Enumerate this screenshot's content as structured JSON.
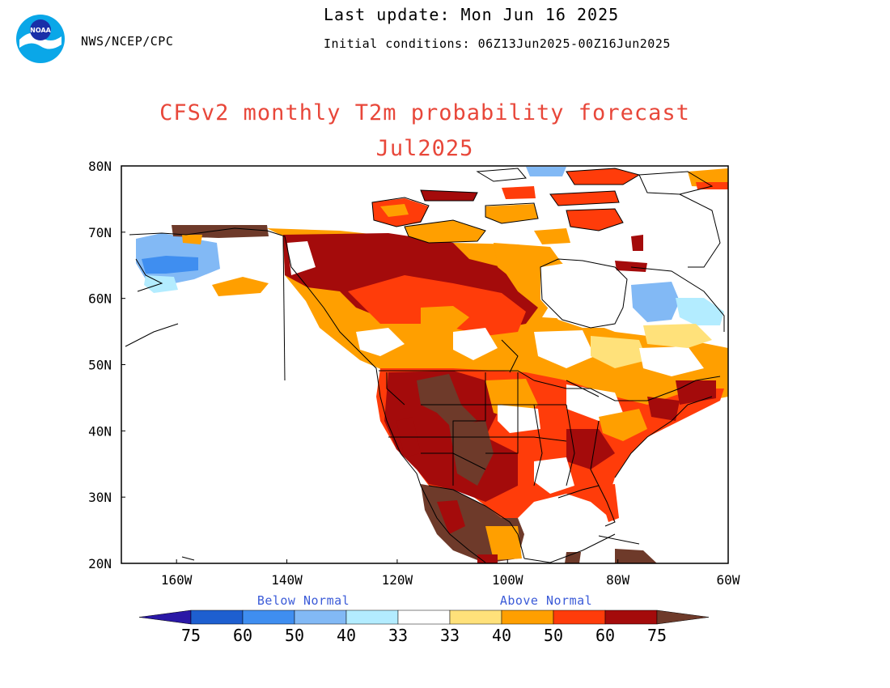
{
  "header": {
    "agency": "NWS/NCEP/CPC",
    "last_update": "Last update: Mon Jun 16 2025",
    "initial_conditions": "Initial conditions: 06Z13Jun2025-00Z16Jun2025",
    "logo_text": "NOAA"
  },
  "title": {
    "line1": "CFSv2 monthly T2m probability forecast",
    "line2": "Jul2025"
  },
  "map": {
    "lon_ticks": [
      "160W",
      "140W",
      "120W",
      "100W",
      "80W",
      "60W"
    ],
    "lat_ticks": [
      "80N",
      "70N",
      "60N",
      "50N",
      "40N",
      "30N",
      "20N"
    ],
    "lon_range": [
      -170,
      -60
    ],
    "lat_range": [
      20,
      80
    ]
  },
  "colorbar": {
    "below_label": "Below Normal",
    "above_label": "Above Normal",
    "tick_labels": [
      "75",
      "60",
      "50",
      "40",
      "33",
      "33",
      "40",
      "50",
      "60",
      "75"
    ],
    "below_colors": [
      "#2a18a6",
      "#1e5fd0",
      "#3f8ef0",
      "#82b9f5",
      "#b3ecff",
      "#ffffff"
    ],
    "above_colors": [
      "#ffe17a",
      "#ff9f00",
      "#ff3c0a",
      "#a40b0b",
      "#6e3a2a"
    ]
  }
}
